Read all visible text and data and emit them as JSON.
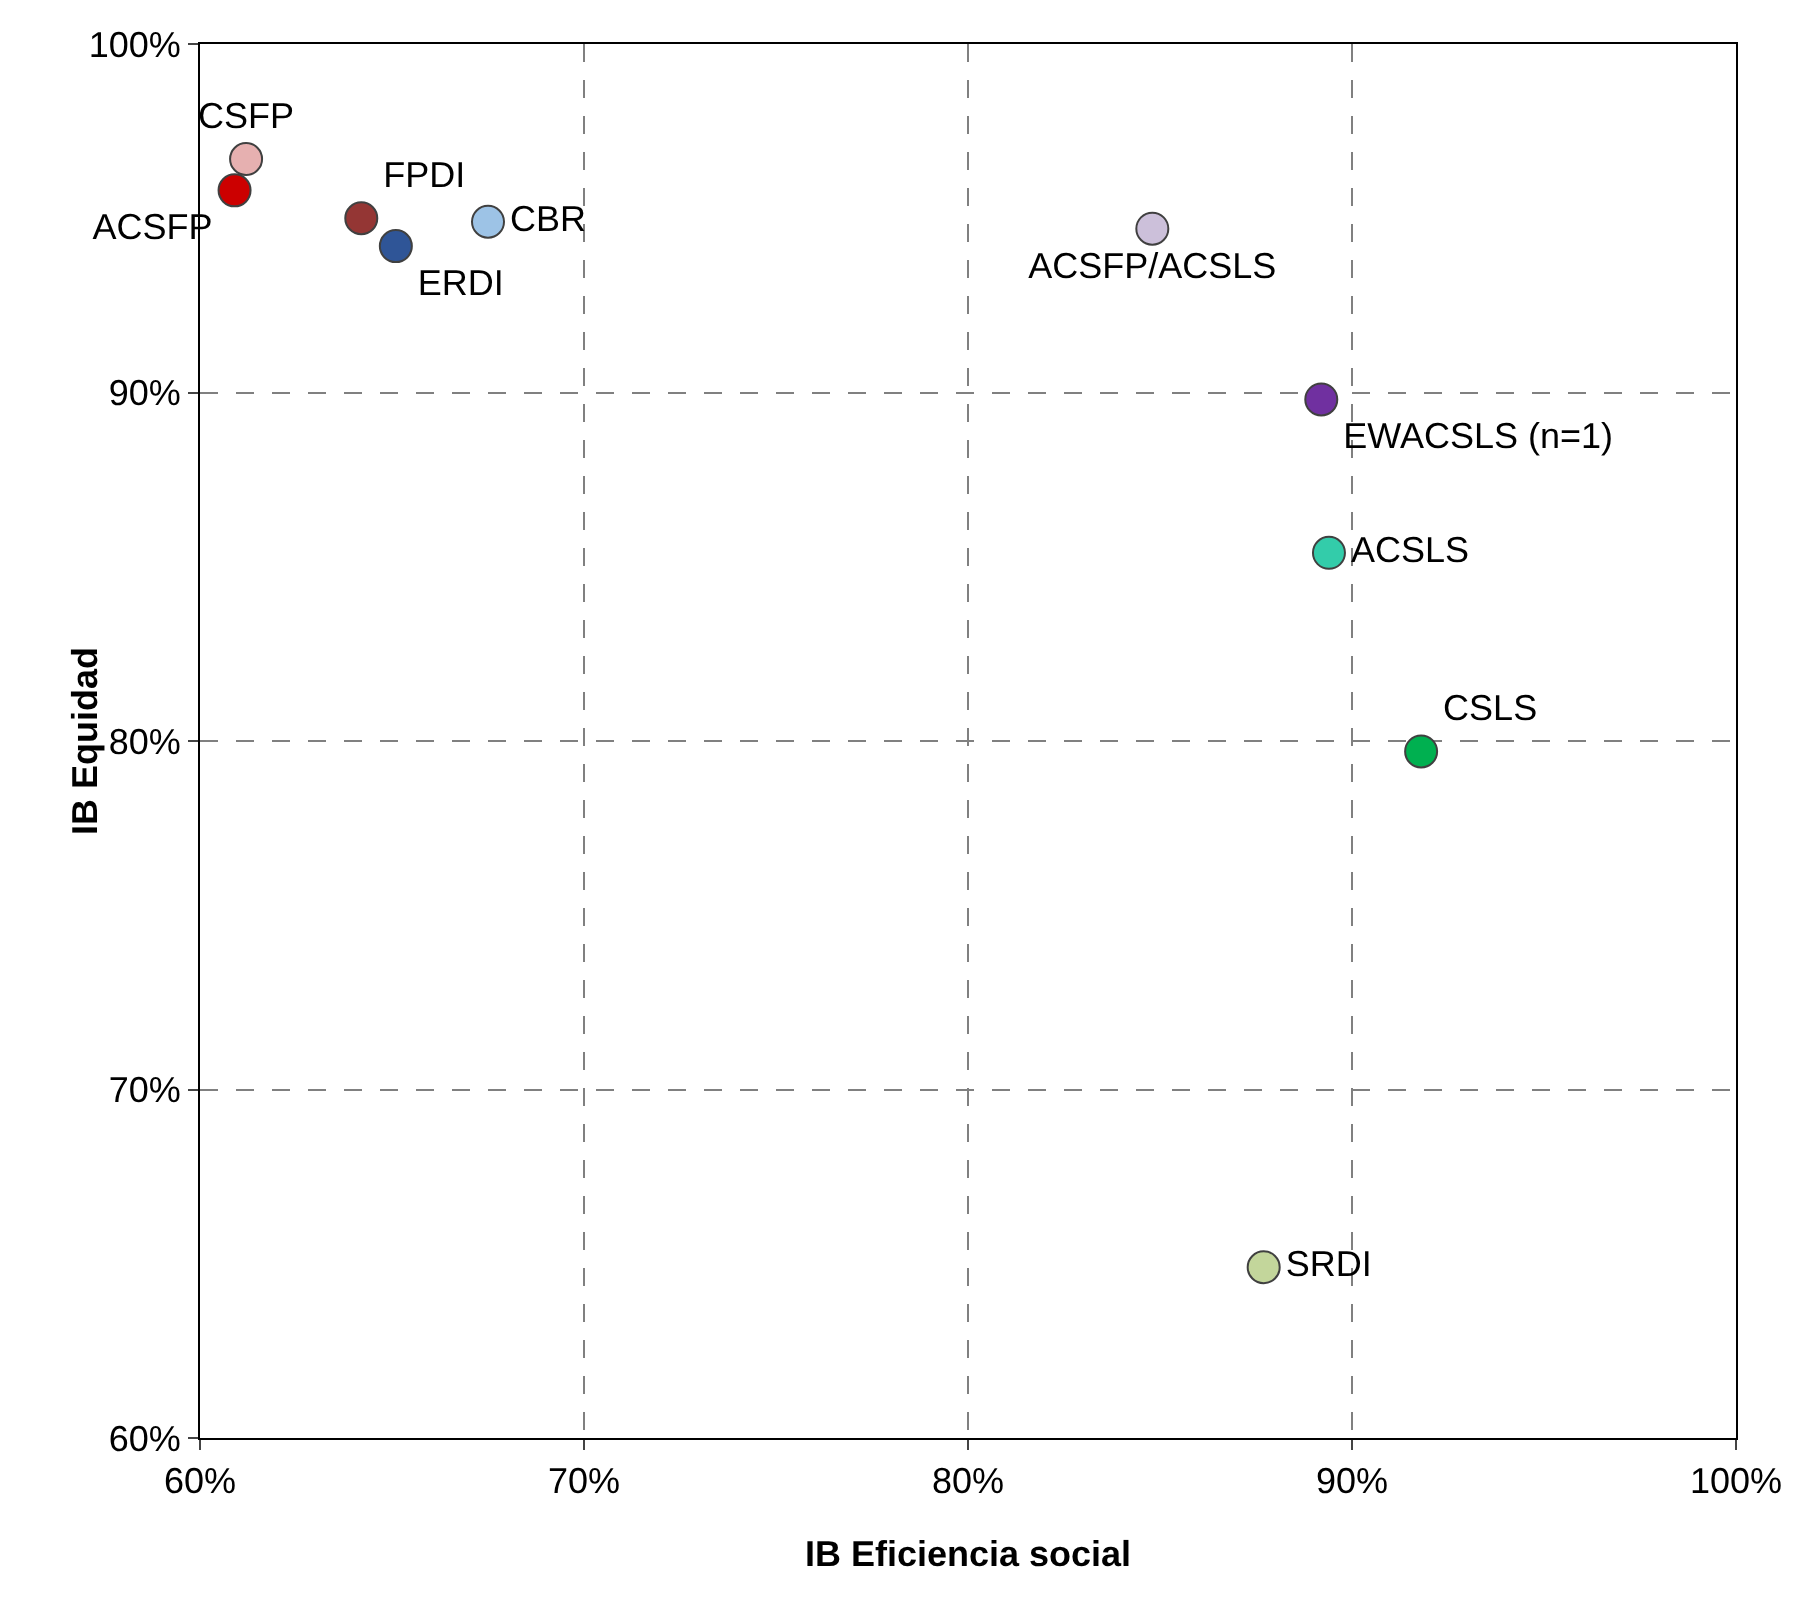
{
  "chart_data": {
    "type": "scatter",
    "xlabel": "IB Eficiencia social",
    "ylabel": "IB Equidad",
    "xlim": [
      60,
      100
    ],
    "ylim": [
      60,
      100
    ],
    "xticks": [
      {
        "value": 60,
        "label": "60%"
      },
      {
        "value": 70,
        "label": "70%"
      },
      {
        "value": 80,
        "label": "80%"
      },
      {
        "value": 90,
        "label": "90%"
      },
      {
        "value": 100,
        "label": "100%"
      }
    ],
    "yticks": [
      {
        "value": 60,
        "label": "60%"
      },
      {
        "value": 70,
        "label": "70%"
      },
      {
        "value": 80,
        "label": "80%"
      },
      {
        "value": 90,
        "label": "90%"
      },
      {
        "value": 100,
        "label": "100%"
      }
    ],
    "grid": true,
    "legend": false,
    "marker": "circle",
    "series": [
      {
        "name": "CSFP",
        "color": "#e6b0b0",
        "x": [
          61.2
        ],
        "values": [
          96.7
        ]
      },
      {
        "name": "ACSFP",
        "color": "#cc0000",
        "x": [
          60.9
        ],
        "values": [
          95.8
        ]
      },
      {
        "name": "FPDI",
        "color": "#943634",
        "x": [
          64.2
        ],
        "values": [
          95.0
        ]
      },
      {
        "name": "ERDI",
        "color": "#2f5597",
        "x": [
          65.1
        ],
        "values": [
          94.2
        ]
      },
      {
        "name": "CBR",
        "color": "#9dc3e6",
        "x": [
          67.5
        ],
        "values": [
          94.9
        ]
      },
      {
        "name": "ACSFP/ACSLS",
        "color": "#ccc0da",
        "x": [
          84.8
        ],
        "values": [
          94.7
        ]
      },
      {
        "name": "EWACSLS (n=1)",
        "color": "#7030a0",
        "x": [
          89.2
        ],
        "values": [
          89.8
        ]
      },
      {
        "name": "ACSLS",
        "color": "#33ccaa",
        "x": [
          89.4
        ],
        "values": [
          85.4
        ]
      },
      {
        "name": "CSLS",
        "color": "#00b050",
        "x": [
          91.8
        ],
        "values": [
          79.7
        ]
      },
      {
        "name": "SRDI",
        "color": "#c3d69b",
        "x": [
          87.7
        ],
        "values": [
          64.9
        ]
      }
    ]
  }
}
